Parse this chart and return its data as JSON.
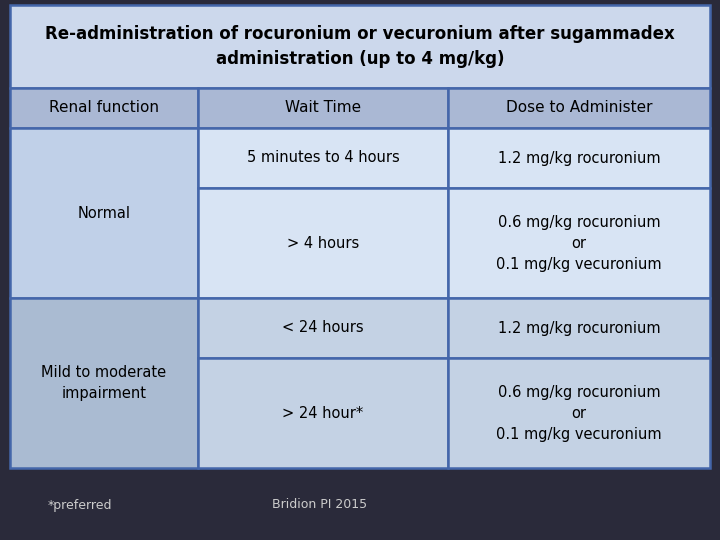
{
  "title": "Re-administration of rocuronium or vecuronium after sugammadex\nadministration (up to 4 mg/kg)",
  "title_fontsize": 12,
  "title_bg": "#ccd8ec",
  "header_bg": "#aab8d4",
  "normal_col0_bg": "#c0d0e8",
  "normal_col1_bg": "#d8e4f4",
  "normal_col2_bg": "#d8e4f4",
  "mild_col0_bg": "#aabbd2",
  "mild_col1_bg": "#c4d2e4",
  "mild_col2_bg": "#c4d2e4",
  "border_color": "#4466aa",
  "text_color": "#000000",
  "footer_text_color": "#cccccc",
  "bg_color": "#2a2a3a",
  "footer_left": "*preferred",
  "footer_right": "Bridion PI 2015",
  "headers": [
    "Renal function",
    "Wait Time",
    "Dose to Administer"
  ],
  "header_fontsize": 11,
  "cell_fontsize": 10.5
}
